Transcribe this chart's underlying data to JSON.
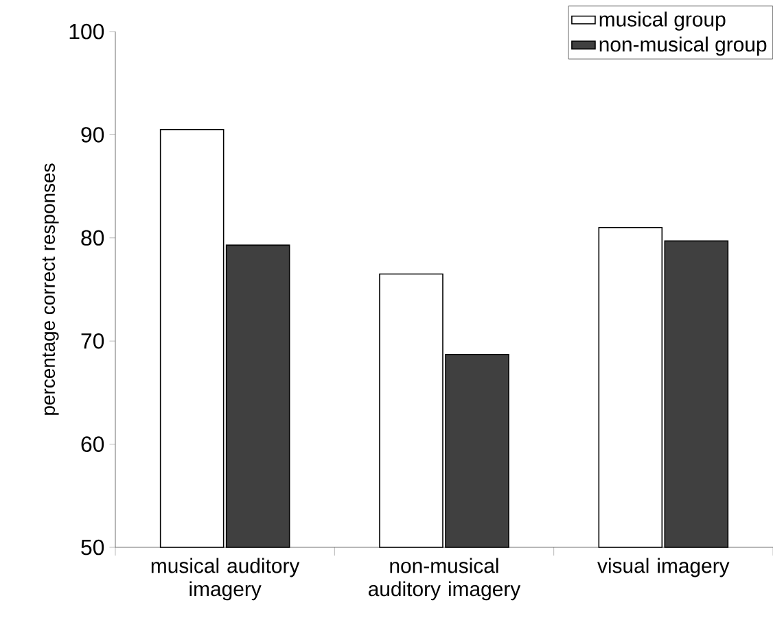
{
  "chart_data": {
    "type": "bar",
    "ylabel": "percentage correct responses",
    "categories": [
      "musical auditory imagery",
      "non-musical auditory imagery",
      "visual imagery"
    ],
    "series": [
      {
        "name": "musical group",
        "color": "#ffffff",
        "values": [
          90.5,
          76.5,
          81.0
        ]
      },
      {
        "name": "non-musical group",
        "color": "#404040",
        "values": [
          79.3,
          68.7,
          79.7
        ]
      }
    ],
    "ylim": [
      50,
      100
    ],
    "yticks": [
      50,
      60,
      70,
      80,
      90,
      100
    ],
    "legend": "top right",
    "grid": false
  }
}
